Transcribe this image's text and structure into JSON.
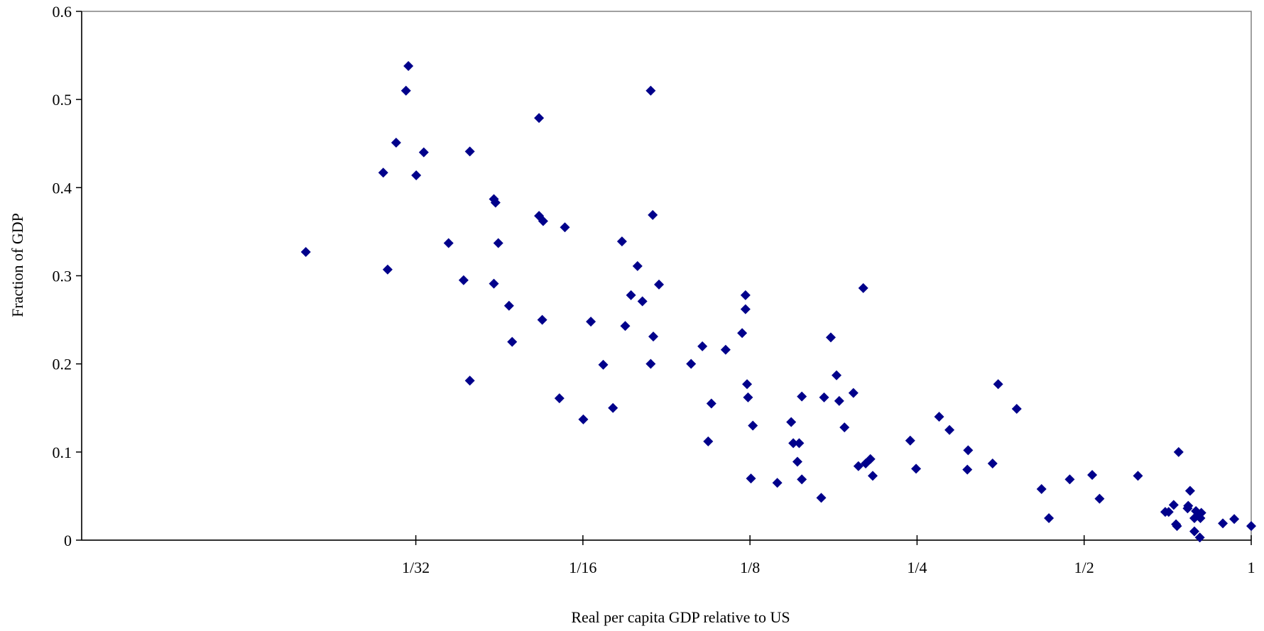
{
  "chart_data": {
    "type": "scatter",
    "xlabel": "Real per capita GDP relative to US",
    "ylabel": "Fraction of GDP",
    "x_scale": "log2",
    "xlim": [
      0.0078125,
      1
    ],
    "ylim": [
      0,
      0.6
    ],
    "x_ticks": [
      {
        "value": 0.03125,
        "label": "1/32"
      },
      {
        "value": 0.0625,
        "label": "1/16"
      },
      {
        "value": 0.125,
        "label": "1/8"
      },
      {
        "value": 0.25,
        "label": "1/4"
      },
      {
        "value": 0.5,
        "label": "1/2"
      },
      {
        "value": 1,
        "label": "1"
      }
    ],
    "y_ticks": [
      {
        "value": 0,
        "label": "0"
      },
      {
        "value": 0.1,
        "label": "0.1"
      },
      {
        "value": 0.2,
        "label": "0.2"
      },
      {
        "value": 0.3,
        "label": "0.3"
      },
      {
        "value": 0.4,
        "label": "0.4"
      },
      {
        "value": 0.5,
        "label": "0.5"
      },
      {
        "value": 0.6,
        "label": "0.6"
      }
    ],
    "grid": false,
    "legend": "none",
    "marker": "diamond",
    "marker_color": "#00008B",
    "series": [
      {
        "points": [
          [
            0.0198,
            0.327
          ],
          [
            0.0273,
            0.417
          ],
          [
            0.0278,
            0.307
          ],
          [
            0.0288,
            0.451
          ],
          [
            0.03,
            0.51
          ],
          [
            0.0303,
            0.538
          ],
          [
            0.0313,
            0.414
          ],
          [
            0.0323,
            0.44
          ],
          [
            0.0358,
            0.337
          ],
          [
            0.0381,
            0.295
          ],
          [
            0.0391,
            0.441
          ],
          [
            0.0391,
            0.181
          ],
          [
            0.0432,
            0.387
          ],
          [
            0.0432,
            0.291
          ],
          [
            0.0435,
            0.383
          ],
          [
            0.044,
            0.337
          ],
          [
            0.046,
            0.266
          ],
          [
            0.0466,
            0.225
          ],
          [
            0.0521,
            0.479
          ],
          [
            0.0521,
            0.368
          ],
          [
            0.0528,
            0.25
          ],
          [
            0.053,
            0.362
          ],
          [
            0.0567,
            0.161
          ],
          [
            0.058,
            0.355
          ],
          [
            0.0626,
            0.137
          ],
          [
            0.0646,
            0.248
          ],
          [
            0.068,
            0.199
          ],
          [
            0.0708,
            0.15
          ],
          [
            0.0735,
            0.339
          ],
          [
            0.0745,
            0.243
          ],
          [
            0.0763,
            0.278
          ],
          [
            0.0784,
            0.311
          ],
          [
            0.08,
            0.271
          ],
          [
            0.0828,
            0.2
          ],
          [
            0.0828,
            0.51
          ],
          [
            0.0835,
            0.369
          ],
          [
            0.0837,
            0.231
          ],
          [
            0.0857,
            0.29
          ],
          [
            0.0979,
            0.2
          ],
          [
            0.1026,
            0.22
          ],
          [
            0.1051,
            0.112
          ],
          [
            0.1065,
            0.155
          ],
          [
            0.113,
            0.216
          ],
          [
            0.121,
            0.235
          ],
          [
            0.1227,
            0.278
          ],
          [
            0.1227,
            0.262
          ],
          [
            0.1235,
            0.177
          ],
          [
            0.124,
            0.162
          ],
          [
            0.1255,
            0.07
          ],
          [
            0.1265,
            0.13
          ],
          [
            0.14,
            0.065
          ],
          [
            0.1483,
            0.134
          ],
          [
            0.1496,
            0.11
          ],
          [
            0.1522,
            0.089
          ],
          [
            0.1533,
            0.11
          ],
          [
            0.155,
            0.163
          ],
          [
            0.155,
            0.069
          ],
          [
            0.168,
            0.048
          ],
          [
            0.17,
            0.162
          ],
          [
            0.1748,
            0.23
          ],
          [
            0.179,
            0.187
          ],
          [
            0.181,
            0.158
          ],
          [
            0.185,
            0.128
          ],
          [
            0.192,
            0.167
          ],
          [
            0.196,
            0.084
          ],
          [
            0.2,
            0.286
          ],
          [
            0.202,
            0.087
          ],
          [
            0.206,
            0.092
          ],
          [
            0.208,
            0.073
          ],
          [
            0.243,
            0.113
          ],
          [
            0.249,
            0.081
          ],
          [
            0.274,
            0.14
          ],
          [
            0.286,
            0.125
          ],
          [
            0.308,
            0.08
          ],
          [
            0.309,
            0.102
          ],
          [
            0.342,
            0.087
          ],
          [
            0.35,
            0.177
          ],
          [
            0.378,
            0.149
          ],
          [
            0.419,
            0.058
          ],
          [
            0.432,
            0.025
          ],
          [
            0.471,
            0.069
          ],
          [
            0.517,
            0.074
          ],
          [
            0.533,
            0.047
          ],
          [
            0.625,
            0.073
          ],
          [
            0.7,
            0.032
          ],
          [
            0.71,
            0.032
          ],
          [
            0.725,
            0.04
          ],
          [
            0.732,
            0.018
          ],
          [
            0.735,
            0.016
          ],
          [
            0.74,
            0.1
          ],
          [
            0.768,
            0.036
          ],
          [
            0.77,
            0.039
          ],
          [
            0.776,
            0.056
          ],
          [
            0.79,
            0.025
          ],
          [
            0.79,
            0.01
          ],
          [
            0.795,
            0.033
          ],
          [
            0.803,
            0.029
          ],
          [
            0.808,
            0.003
          ],
          [
            0.81,
            0.025
          ],
          [
            0.813,
            0.031
          ],
          [
            0.889,
            0.019
          ],
          [
            0.932,
            0.024
          ],
          [
            1.0,
            0.016
          ]
        ]
      }
    ]
  }
}
